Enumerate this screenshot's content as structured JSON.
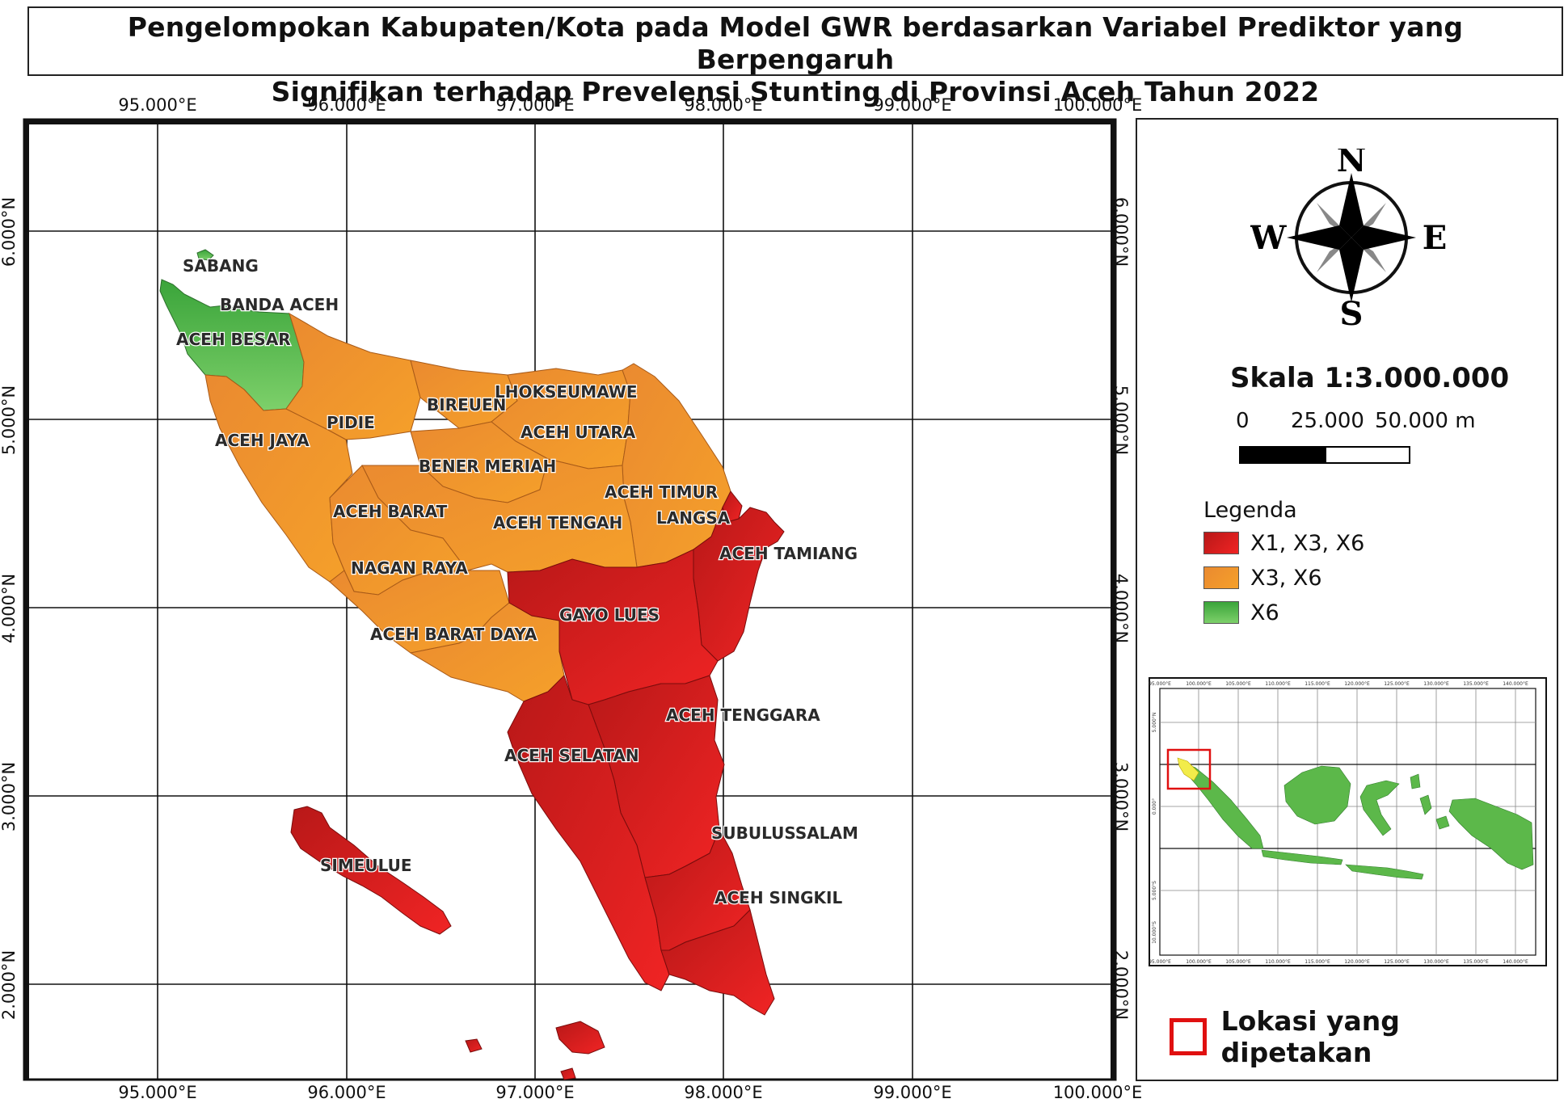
{
  "title": {
    "line1": "Pengelompokan Kabupaten/Kota pada Model GWR berdasarkan Variabel Prediktor yang Berpengaruh",
    "line2": "Signifikan terhadap Prevelensi Stunting di Provinsi Aceh Tahun 2022"
  },
  "axes": {
    "lon_labels": [
      "95.000°E",
      "96.000°E",
      "97.000°E",
      "98.000°E",
      "99.000°E",
      "100.000°E"
    ],
    "lat_labels": [
      "6.000°N",
      "5.000°N",
      "4.000°N",
      "3.000°N",
      "2.000°N"
    ]
  },
  "regions": [
    {
      "name": "SABANG",
      "group": "X6"
    },
    {
      "name": "BANDA ACEH",
      "group": "X6"
    },
    {
      "name": "ACEH BESAR",
      "group": "X6"
    },
    {
      "name": "PIDIE",
      "group": "X3, X6"
    },
    {
      "name": "BIREUEN",
      "group": "X3, X6"
    },
    {
      "name": "LHOKSEUMAWE",
      "group": "X3, X6"
    },
    {
      "name": "ACEH UTARA",
      "group": "X3, X6"
    },
    {
      "name": "ACEH JAYA",
      "group": "X3, X6"
    },
    {
      "name": "BENER MERIAH",
      "group": "X3, X6"
    },
    {
      "name": "ACEH TIMUR",
      "group": "X3, X6"
    },
    {
      "name": "ACEH BARAT",
      "group": "X3, X6"
    },
    {
      "name": "ACEH TENGAH",
      "group": "X3, X6"
    },
    {
      "name": "LANGSA",
      "group": "X3, X6"
    },
    {
      "name": "ACEH TAMIANG",
      "group": "X1, X3, X6"
    },
    {
      "name": "NAGAN RAYA",
      "group": "X3, X6"
    },
    {
      "name": "GAYO LUES",
      "group": "X1, X3, X6"
    },
    {
      "name": "ACEH BARAT DAYA",
      "group": "X3, X6"
    },
    {
      "name": "ACEH TENGGARA",
      "group": "X1, X3, X6"
    },
    {
      "name": "ACEH SELATAN",
      "group": "X1, X3, X6"
    },
    {
      "name": "SUBULUSSALAM",
      "group": "X1, X3, X6"
    },
    {
      "name": "SIMEULUE",
      "group": "X1, X3, X6"
    },
    {
      "name": "ACEH SINGKIL",
      "group": "X1, X3, X6"
    }
  ],
  "compass": {
    "n": "N",
    "s": "S",
    "e": "E",
    "w": "W"
  },
  "scale": {
    "title": "Skala 1:3.000.000",
    "labels": [
      "0",
      "25.000",
      "50.000 m"
    ]
  },
  "legend": {
    "title": "Legenda",
    "items": [
      {
        "label": "X1, X3, X6",
        "color": "#d62020"
      },
      {
        "label": "X3, X6",
        "color": "#f39a2c"
      },
      {
        "label": "X6",
        "color": "#4cb44c"
      }
    ]
  },
  "inset": {
    "lon_labels": [
      "95.000°E",
      "100.000°E",
      "105.000°E",
      "110.000°E",
      "115.000°E",
      "120.000°E",
      "125.000°E",
      "130.000°E",
      "135.000°E",
      "140.000°E"
    ],
    "lat_labels": [
      "5.000°N",
      "0.000°",
      "5.000°S",
      "10.000°S"
    ]
  },
  "locator": {
    "label": "Lokasi yang dipetakan",
    "color": "#e01010"
  }
}
